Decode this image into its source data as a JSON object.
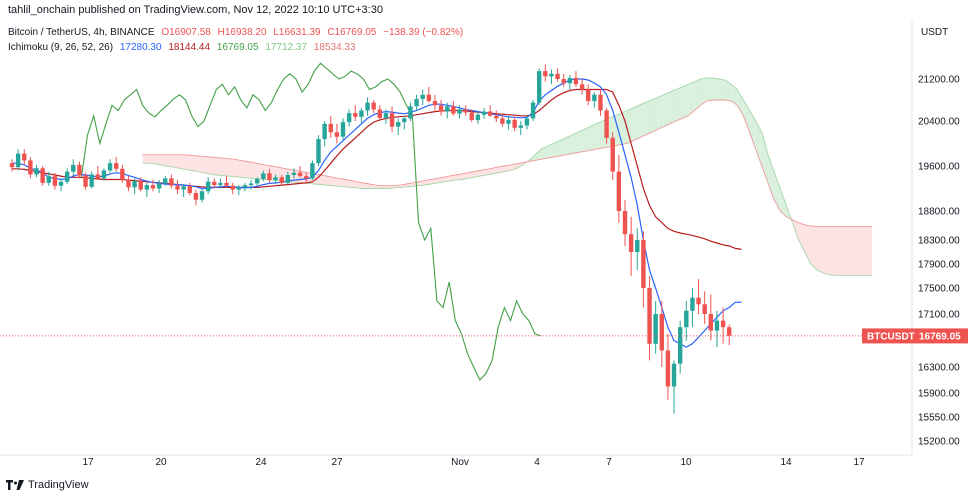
{
  "header": {
    "published": "tahlil_onchain published on TradingView.com, Nov 12, 2022 10:10 UTC+3:30",
    "symbol": "Bitcoin / TetherUS, 4h, BINANCE",
    "ohlc": {
      "o": "O16907.58",
      "h": "H16938.20",
      "l": "L16631.39",
      "c": "C16769.05",
      "change": "−138.39 (−0.82%)"
    },
    "indicator": {
      "name": "Ichimoku (9, 26, 52, 26)",
      "conversion": "17280.30",
      "base": "18144.44",
      "lagging": "16769.05",
      "leadA": "17712.37",
      "leadB": "18534.33"
    },
    "currency": "USDT"
  },
  "price_label": {
    "ticker": "BTCUSDT",
    "value": "16769.05"
  },
  "footer": {
    "brand": "TradingView"
  },
  "colors": {
    "up": "#26a69a",
    "down": "#ef5350",
    "conversion": "#2962ff",
    "base": "#b71c1c",
    "lagging": "#43a047",
    "leadA": "#a5d6a7",
    "leadB": "#ef9a9a",
    "cloud_bull": "#d9f0dc",
    "cloud_bear": "#fde3e3"
  },
  "chart_data": {
    "type": "candlestick",
    "y_ticks": [
      "21200.00",
      "20400.00",
      "19600.00",
      "18800.00",
      "18300.00",
      "17900.00",
      "17500.00",
      "17100.00",
      "16300.00",
      "15900.00",
      "15550.00",
      "15200.00"
    ],
    "x_ticks": [
      "17",
      "20",
      "24",
      "27",
      "Nov",
      "4",
      "7",
      "10",
      "14",
      "17"
    ],
    "grid": false,
    "last_price": 16769.05,
    "ohlc": [
      [
        19650,
        19720,
        19500,
        19580
      ],
      [
        19580,
        19900,
        19520,
        19820
      ],
      [
        19820,
        19900,
        19620,
        19700
      ],
      [
        19700,
        19760,
        19380,
        19450
      ],
      [
        19450,
        19620,
        19400,
        19560
      ],
      [
        19560,
        19600,
        19250,
        19300
      ],
      [
        19300,
        19500,
        19250,
        19420
      ],
      [
        19420,
        19480,
        19180,
        19250
      ],
      [
        19250,
        19380,
        19150,
        19320
      ],
      [
        19320,
        19560,
        19280,
        19500
      ],
      [
        19500,
        19720,
        19430,
        19620
      ],
      [
        19620,
        19680,
        19380,
        19430
      ],
      [
        19430,
        19480,
        19180,
        19230
      ],
      [
        19230,
        19500,
        19200,
        19450
      ],
      [
        19450,
        19600,
        19350,
        19380
      ],
      [
        19380,
        19560,
        19340,
        19520
      ],
      [
        19520,
        19720,
        19480,
        19650
      ],
      [
        19650,
        19760,
        19500,
        19550
      ],
      [
        19550,
        19620,
        19300,
        19360
      ],
      [
        19360,
        19420,
        19150,
        19220
      ],
      [
        19220,
        19380,
        19100,
        19330
      ],
      [
        19330,
        19400,
        19150,
        19180
      ],
      [
        19180,
        19300,
        19050,
        19260
      ],
      [
        19260,
        19360,
        19150,
        19200
      ],
      [
        19200,
        19350,
        19120,
        19290
      ],
      [
        19290,
        19420,
        19250,
        19380
      ],
      [
        19380,
        19450,
        19200,
        19250
      ],
      [
        19250,
        19360,
        19100,
        19180
      ],
      [
        19180,
        19280,
        19050,
        19240
      ],
      [
        19240,
        19300,
        19080,
        19120
      ],
      [
        19120,
        19180,
        18900,
        19000
      ],
      [
        19000,
        19200,
        18950,
        19150
      ],
      [
        19150,
        19400,
        19100,
        19320
      ],
      [
        19320,
        19380,
        19200,
        19260
      ],
      [
        19260,
        19380,
        19200,
        19300
      ],
      [
        19300,
        19420,
        19220,
        19250
      ],
      [
        19250,
        19300,
        19100,
        19180
      ],
      [
        19180,
        19260,
        19080,
        19220
      ],
      [
        19220,
        19300,
        19150,
        19260
      ],
      [
        19260,
        19350,
        19180,
        19290
      ],
      [
        19290,
        19400,
        19250,
        19370
      ],
      [
        19370,
        19520,
        19330,
        19470
      ],
      [
        19470,
        19550,
        19300,
        19350
      ],
      [
        19350,
        19450,
        19280,
        19400
      ],
      [
        19400,
        19440,
        19250,
        19300
      ],
      [
        19300,
        19500,
        19280,
        19440
      ],
      [
        19440,
        19560,
        19380,
        19480
      ],
      [
        19480,
        19600,
        19400,
        19420
      ],
      [
        19420,
        19480,
        19300,
        19380
      ],
      [
        19380,
        19700,
        19350,
        19650
      ],
      [
        19650,
        20150,
        19600,
        20080
      ],
      [
        20080,
        20400,
        19950,
        20350
      ],
      [
        20350,
        20500,
        20100,
        20200
      ],
      [
        20200,
        20350,
        20000,
        20120
      ],
      [
        20120,
        20450,
        20050,
        20380
      ],
      [
        20380,
        20620,
        20300,
        20550
      ],
      [
        20550,
        20700,
        20400,
        20480
      ],
      [
        20480,
        20650,
        20350,
        20600
      ],
      [
        20600,
        20850,
        20500,
        20750
      ],
      [
        20750,
        20800,
        20550,
        20620
      ],
      [
        20620,
        20700,
        20400,
        20460
      ],
      [
        20460,
        20620,
        20350,
        20550
      ],
      [
        20550,
        20680,
        20200,
        20300
      ],
      [
        20300,
        20450,
        20150,
        20380
      ],
      [
        20380,
        20500,
        20250,
        20450
      ],
      [
        20450,
        20750,
        20400,
        20680
      ],
      [
        20680,
        20900,
        20600,
        20820
      ],
      [
        20820,
        21000,
        20700,
        20900
      ],
      [
        20900,
        21050,
        20750,
        20780
      ],
      [
        20780,
        20900,
        20600,
        20700
      ],
      [
        20700,
        20800,
        20500,
        20580
      ],
      [
        20580,
        20750,
        20450,
        20680
      ],
      [
        20680,
        20780,
        20500,
        20540
      ],
      [
        20540,
        20700,
        20450,
        20620
      ],
      [
        20620,
        20700,
        20500,
        20560
      ],
      [
        20560,
        20620,
        20380,
        20420
      ],
      [
        20420,
        20600,
        20350,
        20520
      ],
      [
        20520,
        20650,
        20440,
        20580
      ],
      [
        20580,
        20700,
        20480,
        20500
      ],
      [
        20500,
        20600,
        20380,
        20450
      ],
      [
        20450,
        20520,
        20300,
        20350
      ],
      [
        20350,
        20500,
        20250,
        20420
      ],
      [
        20420,
        20480,
        20220,
        20280
      ],
      [
        20280,
        20400,
        20150,
        20320
      ],
      [
        20320,
        20500,
        20250,
        20450
      ],
      [
        20450,
        20800,
        20400,
        20750
      ],
      [
        20750,
        21400,
        20700,
        21350
      ],
      [
        21350,
        21480,
        21150,
        21250
      ],
      [
        21250,
        21380,
        21100,
        21300
      ],
      [
        21300,
        21400,
        21150,
        21200
      ],
      [
        21200,
        21300,
        21050,
        21120
      ],
      [
        21120,
        21280,
        21000,
        21220
      ],
      [
        21220,
        21350,
        21050,
        21100
      ],
      [
        21100,
        21200,
        20900,
        21000
      ],
      [
        21000,
        21100,
        20700,
        20780
      ],
      [
        20780,
        20950,
        20650,
        20900
      ],
      [
        20900,
        21000,
        20500,
        20600
      ],
      [
        20600,
        20650,
        20000,
        20100
      ],
      [
        20100,
        20200,
        19350,
        19500
      ],
      [
        19500,
        19800,
        18600,
        18800
      ],
      [
        18800,
        19000,
        18200,
        18400
      ],
      [
        18400,
        18700,
        17700,
        18100
      ],
      [
        18100,
        18500,
        17800,
        18300
      ],
      [
        18300,
        18450,
        17200,
        17500
      ],
      [
        17500,
        17700,
        16400,
        16650
      ],
      [
        16650,
        17300,
        16500,
        17100
      ],
      [
        17100,
        17300,
        16300,
        16550
      ],
      [
        16550,
        16800,
        15800,
        16000
      ],
      [
        16000,
        16400,
        15600,
        16350
      ],
      [
        16350,
        17000,
        16200,
        16900
      ],
      [
        16900,
        17300,
        16700,
        17150
      ],
      [
        17150,
        17500,
        16900,
        17350
      ],
      [
        17350,
        17650,
        17100,
        17250
      ],
      [
        17250,
        17450,
        16950,
        17100
      ],
      [
        17100,
        17400,
        16700,
        16850
      ],
      [
        16850,
        17150,
        16600,
        17000
      ],
      [
        17000,
        17200,
        16650,
        16900
      ],
      [
        16900,
        16940,
        16630,
        16770
      ]
    ],
    "ichimoku": {
      "conversion": [
        19650,
        19650,
        19620,
        19560,
        19530,
        19480,
        19400,
        19380,
        19360,
        19370,
        19420,
        19450,
        19440,
        19420,
        19410,
        19420,
        19460,
        19480,
        19470,
        19430,
        19400,
        19360,
        19330,
        19310,
        19290,
        19280,
        19270,
        19270,
        19260,
        19250,
        19230,
        19200,
        19200,
        19220,
        19230,
        19240,
        19230,
        19220,
        19210,
        19220,
        19240,
        19270,
        19290,
        19300,
        19310,
        19330,
        19350,
        19360,
        19370,
        19400,
        19520,
        19700,
        19850,
        19950,
        20050,
        20150,
        20250,
        20350,
        20450,
        20520,
        20560,
        20580,
        20570,
        20550,
        20540,
        20560,
        20600,
        20650,
        20700,
        20720,
        20720,
        20700,
        20680,
        20650,
        20620,
        20600,
        20580,
        20560,
        20540,
        20520,
        20500,
        20480,
        20470,
        20460,
        20470,
        20560,
        20780,
        20900,
        20980,
        21060,
        21120,
        21180,
        21200,
        21200,
        21180,
        21120,
        21050,
        20900,
        20600,
        20200,
        19800,
        19400,
        18900,
        18300,
        17800,
        17500,
        17200,
        16900,
        16700,
        16650,
        16600,
        16650,
        16750,
        16850,
        16950,
        17050,
        17150,
        17200,
        17280,
        17280
      ],
      "base": [
        19550,
        19550,
        19540,
        19520,
        19500,
        19480,
        19460,
        19440,
        19420,
        19400,
        19400,
        19400,
        19390,
        19380,
        19370,
        19360,
        19360,
        19360,
        19360,
        19350,
        19340,
        19330,
        19320,
        19310,
        19300,
        19290,
        19280,
        19270,
        19260,
        19250,
        19240,
        19230,
        19220,
        19220,
        19220,
        19220,
        19220,
        19220,
        19220,
        19220,
        19220,
        19230,
        19240,
        19250,
        19260,
        19270,
        19280,
        19290,
        19300,
        19320,
        19400,
        19520,
        19650,
        19780,
        19900,
        20000,
        20100,
        20200,
        20300,
        20380,
        20420,
        20450,
        20470,
        20480,
        20490,
        20500,
        20520,
        20540,
        20560,
        20580,
        20590,
        20600,
        20600,
        20600,
        20590,
        20580,
        20570,
        20560,
        20550,
        20540,
        20530,
        20520,
        20510,
        20500,
        20500,
        20520,
        20600,
        20700,
        20800,
        20880,
        20940,
        20980,
        21000,
        21000,
        21000,
        21000,
        21000,
        21000,
        20950,
        20700,
        20400,
        20000,
        19600,
        19200,
        18900,
        18700,
        18600,
        18500,
        18450,
        18420,
        18400,
        18380,
        18350,
        18320,
        18280,
        18250,
        18220,
        18200,
        18160,
        18144
      ],
      "lagging": [
        null,
        null,
        null,
        null,
        null,
        null,
        null,
        null,
        null,
        null,
        null,
        null,
        null,
        null,
        null,
        null,
        null,
        null,
        null,
        null,
        null,
        null,
        null,
        null,
        null,
        null,
        null,
        null,
        null,
        null,
        null,
        null,
        null,
        null,
        null,
        null,
        null,
        null,
        null,
        null,
        null,
        null,
        19400,
        20150,
        20500,
        20000,
        20350,
        20700,
        20600,
        20800,
        20900,
        21000,
        20700,
        20550,
        20480,
        20600,
        20700,
        20820,
        20900,
        20800,
        20500,
        20300,
        20400,
        20700,
        21000,
        21100,
        20900,
        21050,
        20800,
        20650,
        20900,
        20800,
        20600,
        20750,
        21000,
        21200,
        21300,
        21200,
        20950,
        21100,
        21350,
        21500,
        21400,
        21300,
        21200,
        21250,
        21350,
        21300,
        21200,
        21000,
        21050,
        21150,
        21200,
        21100,
        20950,
        20700,
        20500,
        18600,
        18300,
        18500,
        17300,
        17200,
        17600,
        17000,
        16800,
        16500,
        16300,
        16100,
        16200,
        16400,
        16900,
        17200,
        17000,
        17300,
        17100,
        17000,
        16800,
        16770
      ],
      "leadA": [
        19650,
        19650,
        19640,
        19620,
        19600,
        19580,
        19560,
        19540,
        19520,
        19500,
        19480,
        19460,
        19440,
        19430,
        19420,
        19410,
        19400,
        19390,
        19380,
        19370,
        19360,
        19350,
        19340,
        19330,
        19320,
        19310,
        19300,
        19290,
        19280,
        19270,
        19260,
        19250,
        19240,
        19230,
        19220,
        19210,
        19200,
        19200,
        19200,
        19200,
        19200,
        19210,
        19220,
        19230,
        19240,
        19250,
        19260,
        19280,
        19300,
        19320,
        19330,
        19350,
        19360,
        19380,
        19400,
        19420,
        19440,
        19460,
        19480,
        19500,
        19520,
        19560,
        19620,
        19700,
        19800,
        19900,
        19950,
        20000,
        20050,
        20100,
        20150,
        20200,
        20250,
        20300,
        20350,
        20400,
        20450,
        20500,
        20550,
        20600,
        20650,
        20700,
        20750,
        20800,
        20850,
        20900,
        20950,
        21000,
        21050,
        21100,
        21150,
        21200,
        21220,
        21220,
        21200,
        21180,
        21100,
        21000,
        20800,
        20600,
        20400,
        20200,
        19800,
        19500,
        19200,
        18900,
        18600,
        18300,
        18100,
        17900,
        17800,
        17750,
        17720,
        17712,
        17712,
        17712,
        17712,
        17712,
        17712,
        17712
      ],
      "leadB": [
        19800,
        19800,
        19800,
        19800,
        19800,
        19800,
        19800,
        19800,
        19790,
        19780,
        19770,
        19760,
        19750,
        19740,
        19730,
        19720,
        19700,
        19680,
        19660,
        19640,
        19620,
        19600,
        19580,
        19560,
        19540,
        19520,
        19500,
        19480,
        19460,
        19440,
        19420,
        19400,
        19380,
        19360,
        19340,
        19320,
        19300,
        19280,
        19260,
        19250,
        19250,
        19250,
        19260,
        19280,
        19300,
        19320,
        19340,
        19360,
        19380,
        19400,
        19420,
        19440,
        19460,
        19480,
        19500,
        19520,
        19540,
        19560,
        19580,
        19600,
        19620,
        19640,
        19660,
        19680,
        19700,
        19720,
        19740,
        19760,
        19780,
        19800,
        19820,
        19840,
        19860,
        19880,
        19900,
        19920,
        19940,
        19960,
        19980,
        20000,
        20050,
        20100,
        20150,
        20200,
        20250,
        20300,
        20350,
        20400,
        20450,
        20500,
        20600,
        20700,
        20780,
        20800,
        20800,
        20800,
        20780,
        20700,
        20500,
        20200,
        19900,
        19600,
        19300,
        19000,
        18800,
        18700,
        18650,
        18600,
        18560,
        18540,
        18534,
        18534,
        18534,
        18534,
        18534,
        18534,
        18534,
        18534,
        18534,
        18534
      ]
    }
  }
}
